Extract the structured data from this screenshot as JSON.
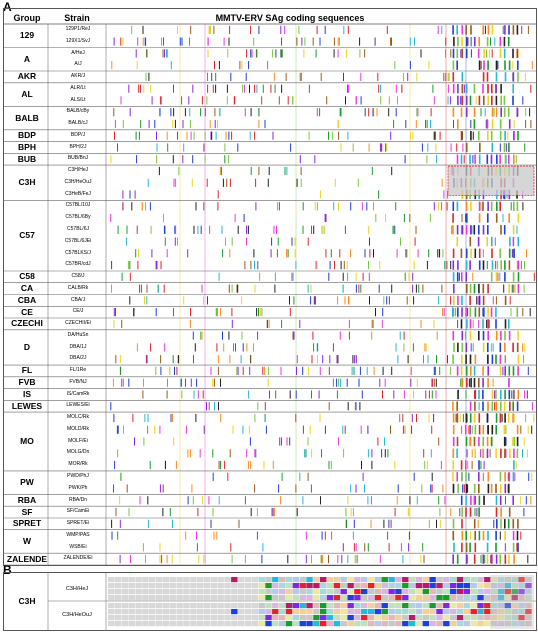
{
  "panel_a": {
    "label": "A",
    "headers": {
      "group": "Group",
      "strain": "Strain",
      "title": "MMTV-ERV SAg coding sequences"
    },
    "rows": [
      {
        "group": "129",
        "strains": [
          "129P1/ReJ",
          "129X1/SvJ"
        ]
      },
      {
        "group": "A",
        "strains": [
          "A/HeJ",
          "A/J"
        ]
      },
      {
        "group": "AKR",
        "strains": [
          "AKR/J"
        ]
      },
      {
        "group": "AL",
        "strains": [
          "ALR/Lt",
          "ALS/Lt"
        ]
      },
      {
        "group": "BALB",
        "strains": [
          "BALB/cBy",
          "BALB/cJ"
        ]
      },
      {
        "group": "BDP",
        "strains": [
          "BDP/J"
        ]
      },
      {
        "group": "BPH",
        "strains": [
          "BPH/2J"
        ]
      },
      {
        "group": "BUB",
        "strains": [
          "BUB/BnJ"
        ]
      },
      {
        "group": "C3H",
        "strains": [
          "C3H/HeJ",
          "C3H/HeOuJ",
          "C3HeB/FeJ"
        ]
      },
      {
        "group": "C57",
        "strains": [
          "C57BL/10J",
          "C57BL/6By",
          "C57BL/6J",
          "C57BL/6JEi",
          "C57BLKS/J",
          "C57BR/cdJ"
        ]
      },
      {
        "group": "C58",
        "strains": [
          "C58/J"
        ]
      },
      {
        "group": "CA",
        "strains": [
          "CALB/Rk"
        ]
      },
      {
        "group": "CBA",
        "strains": [
          "CBA/J"
        ]
      },
      {
        "group": "CE",
        "strains": [
          "CE/J"
        ]
      },
      {
        "group": "CZECHI",
        "strains": [
          "CZECHII/Ei"
        ]
      },
      {
        "group": "D",
        "strains": [
          "DA/HuSn",
          "DBA/1J",
          "DBA/2J"
        ]
      },
      {
        "group": "FL",
        "strains": [
          "FL/1Re"
        ]
      },
      {
        "group": "FVB",
        "strains": [
          "FVB/NJ"
        ]
      },
      {
        "group": "IS",
        "strains": [
          "IS/CamRk"
        ]
      },
      {
        "group": "LEWES",
        "strains": [
          "LEWES/Ei"
        ]
      },
      {
        "group": "MO",
        "strains": [
          "MOLC/Rk",
          "MOLD/Rk",
          "MOLF/Ei",
          "MOLG/Dn",
          "MOR/Rk"
        ]
      },
      {
        "group": "PW",
        "strains": [
          "PWD/PhJ",
          "PWK/Ph"
        ]
      },
      {
        "group": "RBA",
        "strains": [
          "RBA/Dn"
        ]
      },
      {
        "group": "SF",
        "strains": [
          "SF/CamEi"
        ]
      },
      {
        "group": "SPRET",
        "strains": [
          "SPRET/Ei"
        ]
      },
      {
        "group": "W",
        "strains": [
          "WMP/PAS",
          "WSB/Ei"
        ]
      },
      {
        "group": "ZALENDE",
        "strains": [
          "ZALENDE/Ei"
        ]
      }
    ]
  },
  "panel_b": {
    "label": "B",
    "group": "C3H",
    "strains": [
      "C3H/HeJ",
      "C3H/HeOuJ"
    ]
  },
  "colors": {
    "frame": "#555555",
    "highlight_box": "#c8c8c8",
    "highlight_border": "#e03030",
    "palette": [
      "#1f3fd6",
      "#e0262b",
      "#1b9b2e",
      "#e838e6",
      "#9a5b1c",
      "#222222",
      "#f0d21f",
      "#27b8d8",
      "#8a2be2",
      "#ff8c1a",
      "#7ac943"
    ]
  }
}
